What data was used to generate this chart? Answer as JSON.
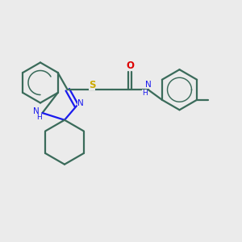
{
  "bg_color": "#ebebeb",
  "bond_color": "#3a6b5a",
  "N_color": "#1a1aee",
  "O_color": "#dd0000",
  "S_color": "#ccaa00",
  "line_width": 1.6,
  "fig_size": [
    3.0,
    3.0
  ],
  "dpi": 100,
  "xlim": [
    0,
    12
  ],
  "ylim": [
    0,
    12
  ]
}
